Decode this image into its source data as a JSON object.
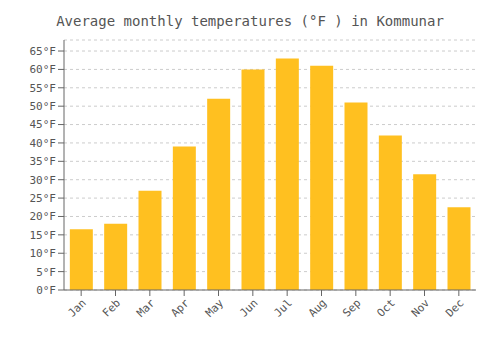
{
  "chart_data": {
    "type": "bar",
    "title": "Average monthly temperatures (°F ) in Kommunar",
    "categories": [
      "Jan",
      "Feb",
      "Mar",
      "Apr",
      "May",
      "Jun",
      "Jul",
      "Aug",
      "Sep",
      "Oct",
      "Nov",
      "Dec"
    ],
    "values": [
      16.5,
      18.0,
      27.0,
      39.0,
      52.0,
      60.0,
      63.0,
      61.0,
      51.0,
      42.0,
      31.5,
      22.5
    ],
    "color": "#FFC020",
    "ylim": [
      0,
      68
    ],
    "yticks": [
      {
        "value": 0,
        "label": "0°F"
      },
      {
        "value": 5,
        "label": "5°F"
      },
      {
        "value": 10,
        "label": "10°F"
      },
      {
        "value": 15,
        "label": "15°F"
      },
      {
        "value": 20,
        "label": "20°F"
      },
      {
        "value": 25,
        "label": "25°F"
      },
      {
        "value": 30,
        "label": "30°F"
      },
      {
        "value": 35,
        "label": "35°F"
      },
      {
        "value": 40,
        "label": "40°F"
      },
      {
        "value": 45,
        "label": "45°F"
      },
      {
        "value": 50,
        "label": "50°F"
      },
      {
        "value": 55,
        "label": "55°F"
      },
      {
        "value": 60,
        "label": "60°F"
      },
      {
        "value": 65,
        "label": "65°F"
      }
    ],
    "grid": true
  }
}
